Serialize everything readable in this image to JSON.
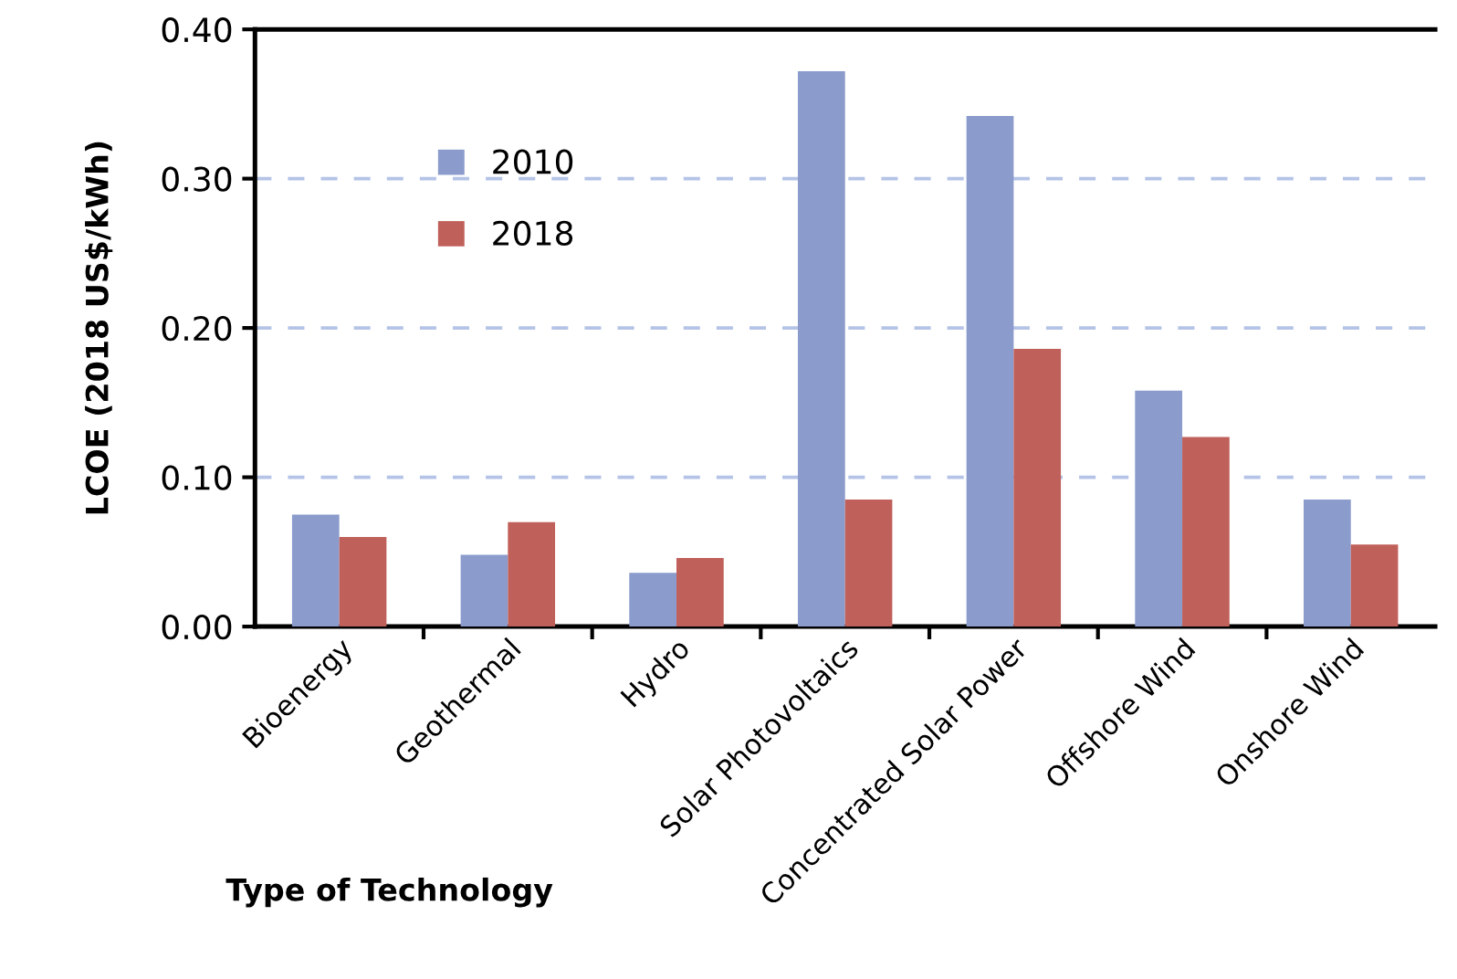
{
  "chart_data": {
    "type": "bar",
    "xlabel": "Type of Technology",
    "ylabel": "LCOE (2018 US$/kWh)",
    "categories": [
      "Bioenergy",
      "Geothermal",
      "Hydro",
      "Solar Photovoltaics",
      "Concentrated Solar Power",
      "Offshore Wind",
      "Onshore Wind"
    ],
    "series": [
      {
        "name": "2010",
        "color": "#8a9bcc",
        "values": [
          0.075,
          0.048,
          0.036,
          0.372,
          0.342,
          0.158,
          0.085
        ]
      },
      {
        "name": "2018",
        "color": "#c0605a",
        "values": [
          0.06,
          0.07,
          0.046,
          0.085,
          0.186,
          0.127,
          0.055
        ]
      }
    ],
    "ylim": [
      0,
      0.4
    ],
    "yticks": [
      {
        "value": 0,
        "label": "0.00"
      },
      {
        "value": 0.1,
        "label": "0.10"
      },
      {
        "value": 0.2,
        "label": "0.20"
      },
      {
        "value": 0.3,
        "label": "0.30"
      },
      {
        "value": 0.4,
        "label": "0.40"
      }
    ],
    "grid": "y",
    "legend": "top left"
  }
}
